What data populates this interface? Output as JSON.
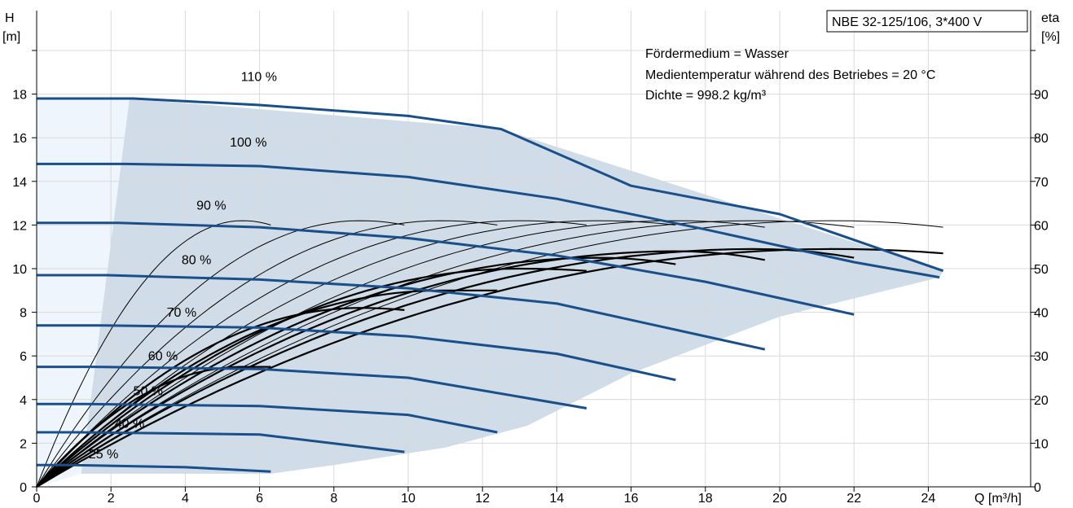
{
  "chart_data": {
    "type": "line",
    "title": "NBE 32-125/106, 3*400 V",
    "info_lines": [
      "Fördermedium = Wasser",
      "Medientemperatur während des Betriebes = 20 °C",
      "Dichte = 998.2 kg/m³"
    ],
    "x_axis": {
      "label": "Q [m³/h]",
      "range": [
        0,
        26
      ],
      "ticks": [
        0,
        2,
        4,
        6,
        8,
        10,
        12,
        14,
        16,
        18,
        20,
        22,
        24
      ]
    },
    "y_left": {
      "label_top": "H",
      "label_bottom": "[m]",
      "range": [
        0,
        22
      ],
      "ticks": [
        0,
        2,
        4,
        6,
        8,
        10,
        12,
        14,
        16,
        18
      ]
    },
    "y_right": {
      "label_top": "eta",
      "label_bottom": "[%]",
      "range": [
        0,
        110
      ],
      "ticks": [
        0,
        10,
        20,
        30,
        40,
        50,
        60,
        70,
        80,
        90
      ]
    },
    "grid": true,
    "colors": {
      "head_curve": "#1a4f8a",
      "efficiency_curve": "#000000",
      "operating_area": "#d0dce8",
      "low_flow_area": "#eef5fc",
      "grid": "#d9d9d9"
    },
    "operating_area_boundary": [
      [
        2.5,
        17.8
      ],
      [
        12.5,
        16.4
      ],
      [
        24.4,
        9.9
      ],
      [
        24.3,
        9.6
      ],
      [
        20,
        7.8
      ],
      [
        16,
        5.2
      ],
      [
        13.2,
        2.8
      ],
      [
        11,
        1.8
      ],
      [
        8,
        1.0
      ],
      [
        6.3,
        0.6
      ],
      [
        1.2,
        0.6
      ]
    ],
    "head_curves": [
      {
        "label": "110 %",
        "label_pos": [
          5.5,
          18.6
        ],
        "x": [
          0,
          2.6,
          6,
          10,
          12.5,
          16,
          20,
          24.4
        ],
        "y": [
          17.8,
          17.8,
          17.5,
          17.0,
          16.4,
          13.8,
          12.5,
          9.9
        ]
      },
      {
        "label": "100 %",
        "label_pos": [
          5.2,
          15.6
        ],
        "x": [
          0,
          2.4,
          6,
          10,
          14,
          18,
          22,
          24.3
        ],
        "y": [
          14.8,
          14.8,
          14.7,
          14.2,
          13.2,
          11.8,
          10.3,
          9.6
        ]
      },
      {
        "label": "90 %",
        "label_pos": [
          4.3,
          12.7
        ],
        "x": [
          0,
          2.2,
          6,
          10,
          14,
          18,
          22
        ],
        "y": [
          12.1,
          12.1,
          11.9,
          11.4,
          10.6,
          9.4,
          7.9
        ]
      },
      {
        "label": "80 %",
        "label_pos": [
          3.9,
          10.2
        ],
        "x": [
          0,
          1.9,
          6,
          10,
          14,
          19.6
        ],
        "y": [
          9.7,
          9.7,
          9.5,
          9.1,
          8.4,
          6.3
        ]
      },
      {
        "label": "70 %",
        "label_pos": [
          3.5,
          7.8
        ],
        "x": [
          0,
          1.7,
          6,
          10,
          14,
          17.2
        ],
        "y": [
          7.4,
          7.4,
          7.3,
          6.9,
          6.1,
          4.9
        ]
      },
      {
        "label": "60 %",
        "label_pos": [
          3.0,
          5.8
        ],
        "x": [
          0,
          1.5,
          6,
          10,
          14.8
        ],
        "y": [
          5.5,
          5.5,
          5.4,
          5.0,
          3.6
        ]
      },
      {
        "label": "50 %",
        "label_pos": [
          2.6,
          4.2
        ],
        "x": [
          0,
          1.3,
          6,
          10,
          12.4
        ],
        "y": [
          3.8,
          3.8,
          3.7,
          3.3,
          2.5
        ]
      },
      {
        "label": "40 %",
        "label_pos": [
          2.1,
          2.7
        ],
        "x": [
          0,
          1.1,
          6,
          9.9
        ],
        "y": [
          2.5,
          2.5,
          2.4,
          1.6
        ]
      },
      {
        "label": "25 %",
        "label_pos": [
          1.4,
          1.3
        ],
        "x": [
          0,
          0.9,
          4,
          6.3
        ],
        "y": [
          1.0,
          1.0,
          0.9,
          0.7
        ]
      }
    ],
    "efficiency_curves": [
      {
        "qmax": 6.3,
        "peak": 61,
        "end": 60,
        "style": "thin"
      },
      {
        "qmax": 9.9,
        "peak": 61,
        "end": 60,
        "style": "thin"
      },
      {
        "qmax": 12.4,
        "peak": 61,
        "end": 60,
        "style": "thin"
      },
      {
        "qmax": 14.8,
        "peak": 61,
        "end": 60,
        "style": "thin"
      },
      {
        "qmax": 17.2,
        "peak": 61,
        "end": 60,
        "style": "thin"
      },
      {
        "qmax": 19.6,
        "peak": 61,
        "end": 59.5,
        "style": "thin"
      },
      {
        "qmax": 22.0,
        "peak": 61,
        "end": 59.5,
        "style": "thin"
      },
      {
        "qmax": 24.4,
        "peak": 61,
        "end": 59.5,
        "style": "thin"
      },
      {
        "qmax": 6.3,
        "peak": 27.5,
        "end": 27.5,
        "style": "thick"
      },
      {
        "qmax": 9.9,
        "peak": 41,
        "end": 40.5,
        "style": "thick"
      },
      {
        "qmax": 12.4,
        "peak": 45,
        "end": 45,
        "style": "thick"
      },
      {
        "qmax": 14.8,
        "peak": 50,
        "end": 49.5,
        "style": "thick"
      },
      {
        "qmax": 17.2,
        "peak": 52.5,
        "end": 51,
        "style": "thick"
      },
      {
        "qmax": 19.6,
        "peak": 54,
        "end": 52,
        "style": "thick"
      },
      {
        "qmax": 22.0,
        "peak": 54.5,
        "end": 52.5,
        "style": "thick"
      },
      {
        "qmax": 24.4,
        "peak": 54.5,
        "end": 53.5,
        "style": "thick"
      }
    ]
  }
}
